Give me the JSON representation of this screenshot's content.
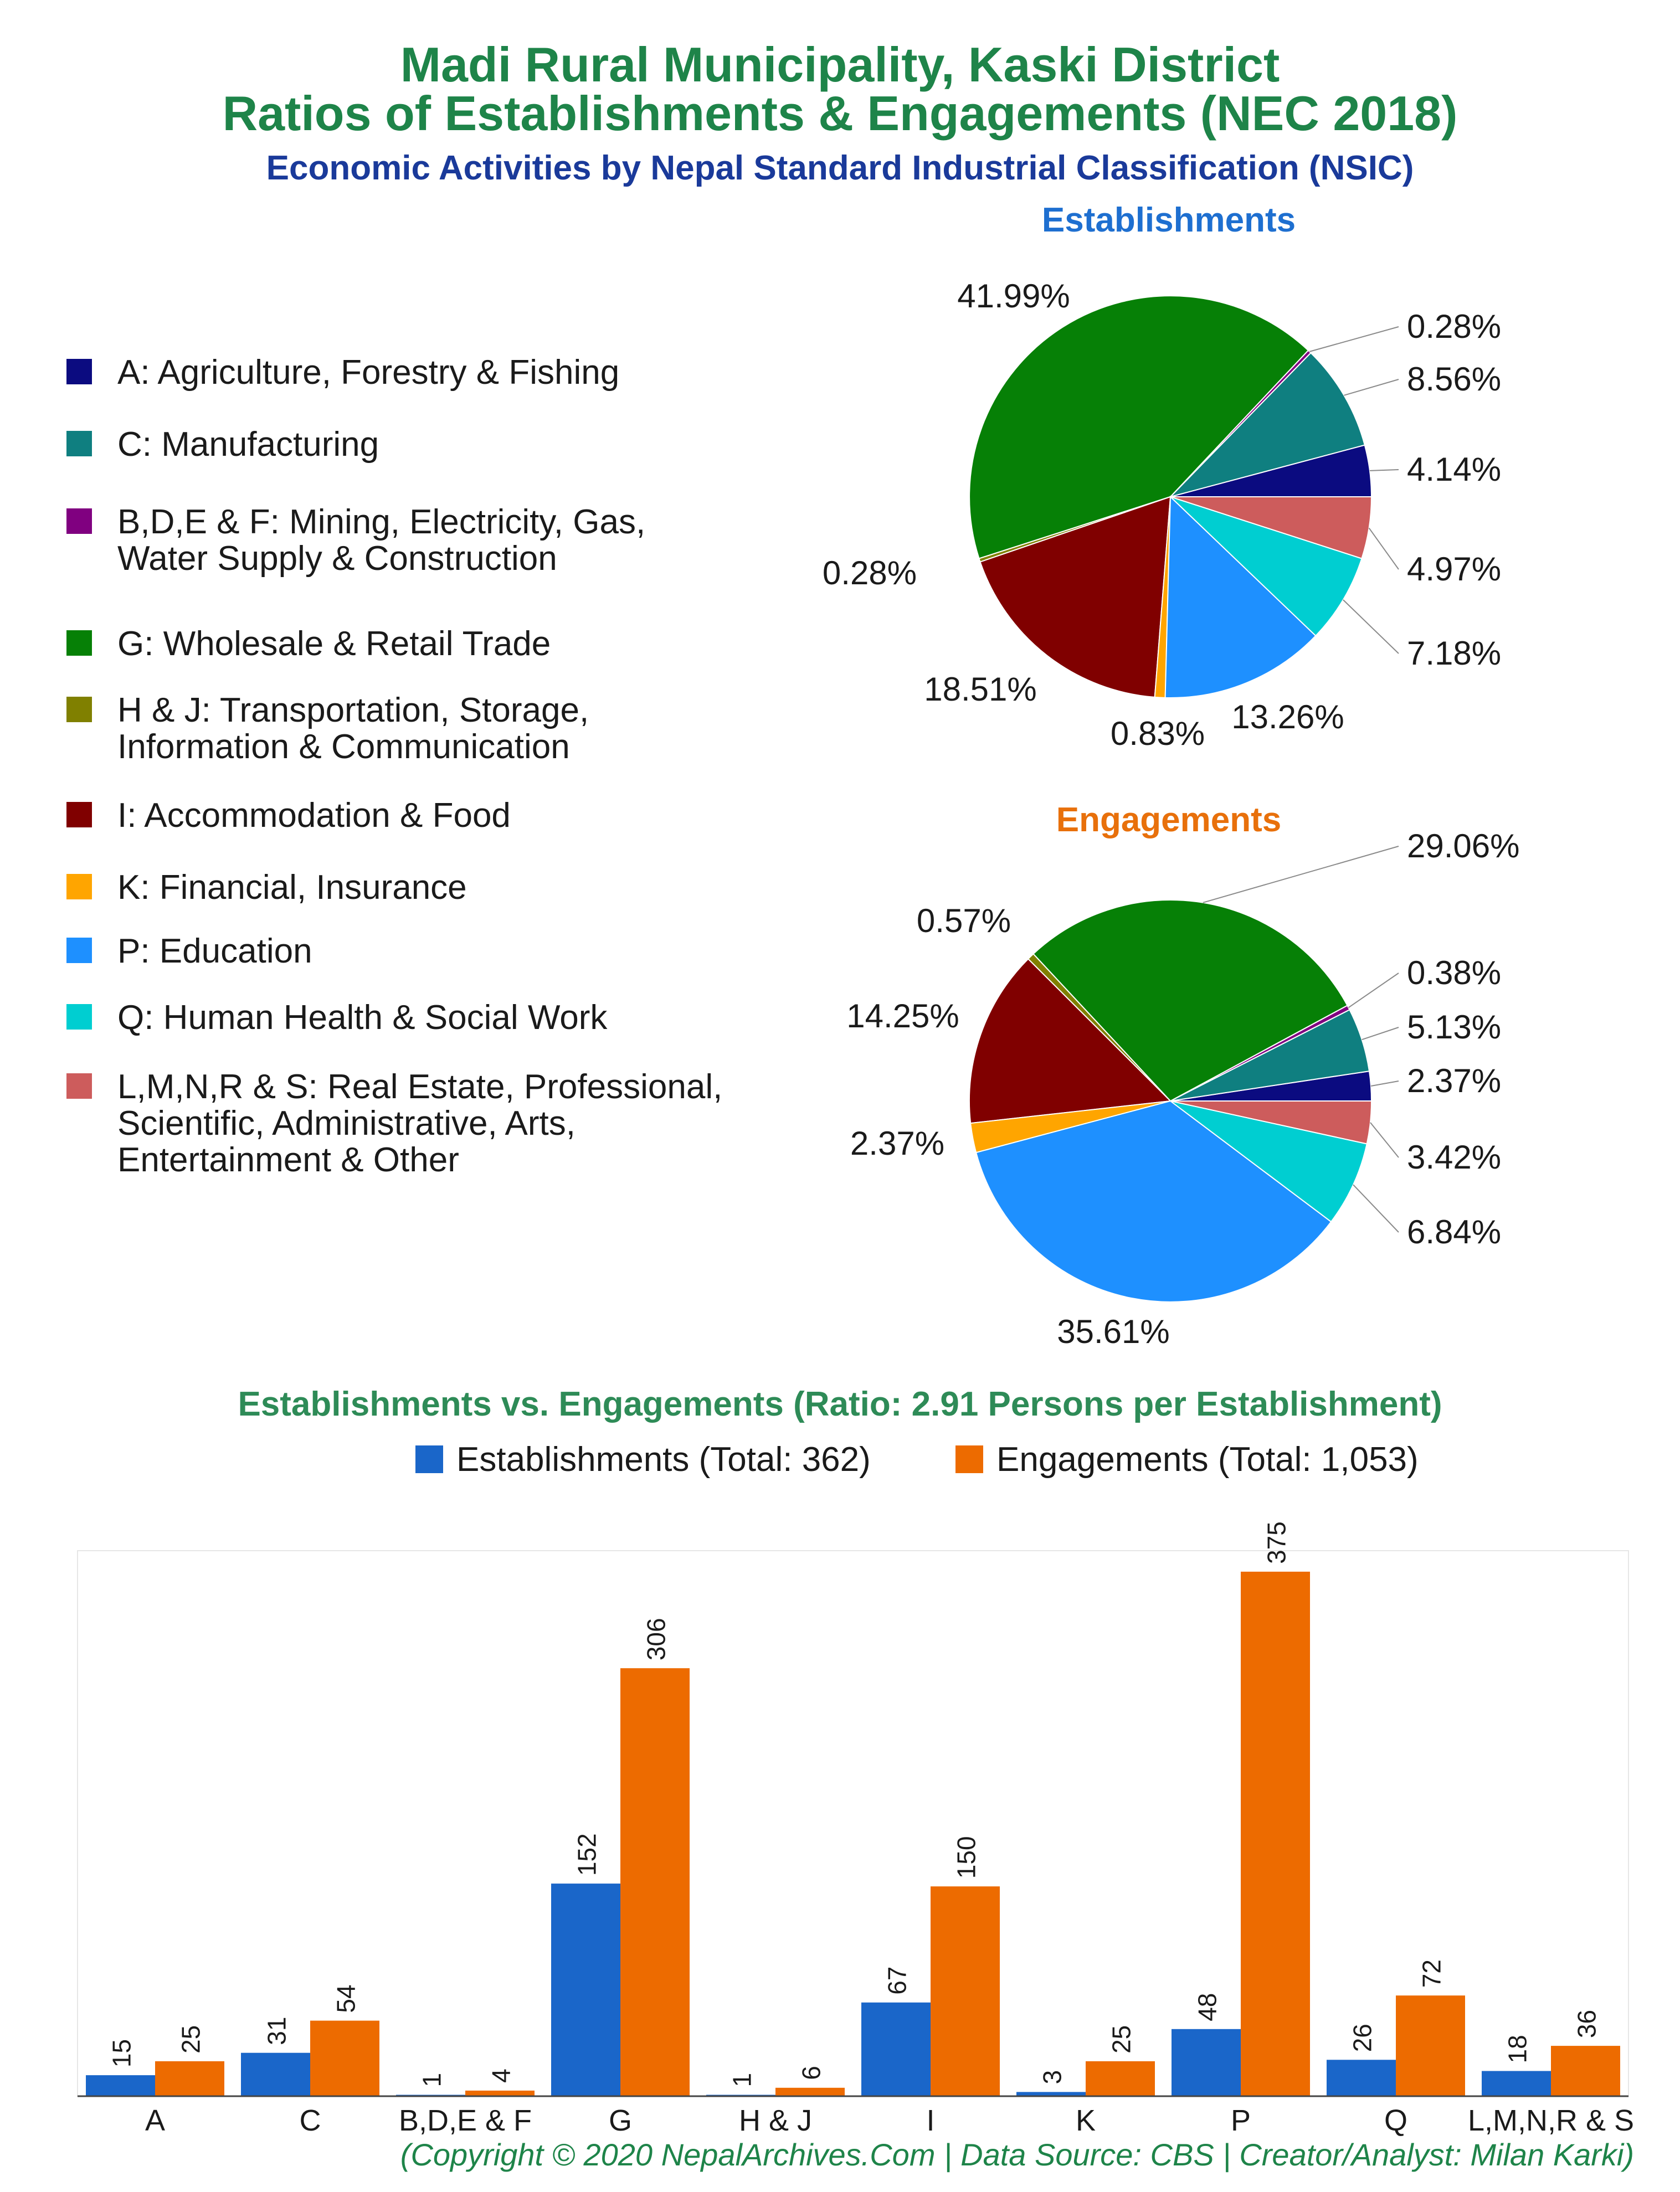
{
  "header": {
    "title_line1": "Madi Rural Municipality, Kaski District",
    "title_line2": "Ratios of Establishments & Engagements (NEC 2018)",
    "subtitle": "Economic Activities by Nepal Standard Industrial Classification (NSIC)"
  },
  "legend": {
    "items": [
      {
        "label": "A: Agriculture, Forestry & Fishing",
        "color": "#0b0b80"
      },
      {
        "label": "C: Manufacturing",
        "color": "#0f7f80"
      },
      {
        "label": "B,D,E & F: Mining, Electricity, Gas,\nWater Supply & Construction",
        "color": "#800080"
      },
      {
        "label": "G: Wholesale & Retail Trade",
        "color": "#068006"
      },
      {
        "label": "H & J: Transportation, Storage,\nInformation & Communication",
        "color": "#808000"
      },
      {
        "label": "I: Accommodation & Food",
        "color": "#800000"
      },
      {
        "label": "K: Financial, Insurance",
        "color": "#ffa500"
      },
      {
        "label": "P: Education",
        "color": "#1e90ff"
      },
      {
        "label": "Q: Human Health & Social Work",
        "color": "#00ced1"
      },
      {
        "label": "L,M,N,R & S: Real Estate, Professional,\nScientific, Administrative, Arts,\nEntertainment & Other",
        "color": "#cd5c5c"
      }
    ]
  },
  "chart_data": [
    {
      "type": "pie",
      "title": "Establishments",
      "labels": [
        "A",
        "C",
        "B,D,E & F",
        "G",
        "H & J",
        "I",
        "K",
        "P",
        "Q",
        "L,M,N,R & S"
      ],
      "values": [
        4.14,
        8.56,
        0.28,
        41.99,
        0.28,
        18.51,
        0.83,
        13.26,
        7.18,
        4.97
      ],
      "value_labels": [
        "4.14%",
        "8.56%",
        "0.28%",
        "41.99%",
        "0.28%",
        "18.51%",
        "0.83%",
        "13.26%",
        "7.18%",
        "4.97%"
      ]
    },
    {
      "type": "pie",
      "title": "Engagements",
      "labels": [
        "A",
        "C",
        "B,D,E & F",
        "G",
        "H & J",
        "I",
        "K",
        "P",
        "Q",
        "L,M,N,R & S"
      ],
      "values": [
        2.37,
        5.13,
        0.38,
        29.06,
        0.57,
        14.25,
        2.37,
        35.61,
        6.84,
        3.42
      ],
      "value_labels": [
        "2.37%",
        "5.13%",
        "0.38%",
        "29.06%",
        "0.57%",
        "14.25%",
        "2.37%",
        "35.61%",
        "6.84%",
        "3.42%"
      ]
    },
    {
      "type": "bar",
      "title": "Establishments vs. Engagements (Ratio: 2.91 Persons per Establishment)",
      "categories": [
        "A",
        "C",
        "B,D,E & F",
        "G",
        "H & J",
        "I",
        "K",
        "P",
        "Q",
        "L,M,N,R & S"
      ],
      "series": [
        {
          "name": "Establishments (Total: 362)",
          "color": "#1a66c9",
          "values": [
            15,
            31,
            1,
            152,
            1,
            67,
            3,
            48,
            26,
            18
          ]
        },
        {
          "name": "Engagements (Total: 1,053)",
          "color": "#ed6b00",
          "values": [
            25,
            54,
            4,
            306,
            6,
            150,
            25,
            375,
            72,
            36
          ]
        }
      ],
      "ylim": [
        0,
        390
      ],
      "legend_position": "top-center"
    }
  ],
  "footer": {
    "credit": "(Copyright © 2020 NepalArchives.Com | Data Source: CBS | Creator/Analyst: Milan Karki)"
  }
}
